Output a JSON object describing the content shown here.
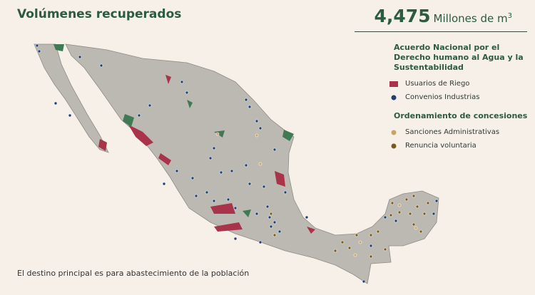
{
  "header": {
    "title": "Volúmenes recuperados",
    "total": "4,475",
    "unit": "Millones de m",
    "unit_exponent": "3"
  },
  "legend": {
    "groups": [
      {
        "title": "Acuerdo Nacional por el Derecho humano al Agua y la Sustentabilidad",
        "items": [
          "Usuarios de Riego",
          "Convenios Industrias"
        ]
      },
      {
        "title": "Ordenamiento de concesiones",
        "items": [
          "Sanciones Administrativas",
          "Renuncia voluntaria"
        ]
      }
    ]
  },
  "footer": "El destino principal es para abastecimiento de la población"
}
